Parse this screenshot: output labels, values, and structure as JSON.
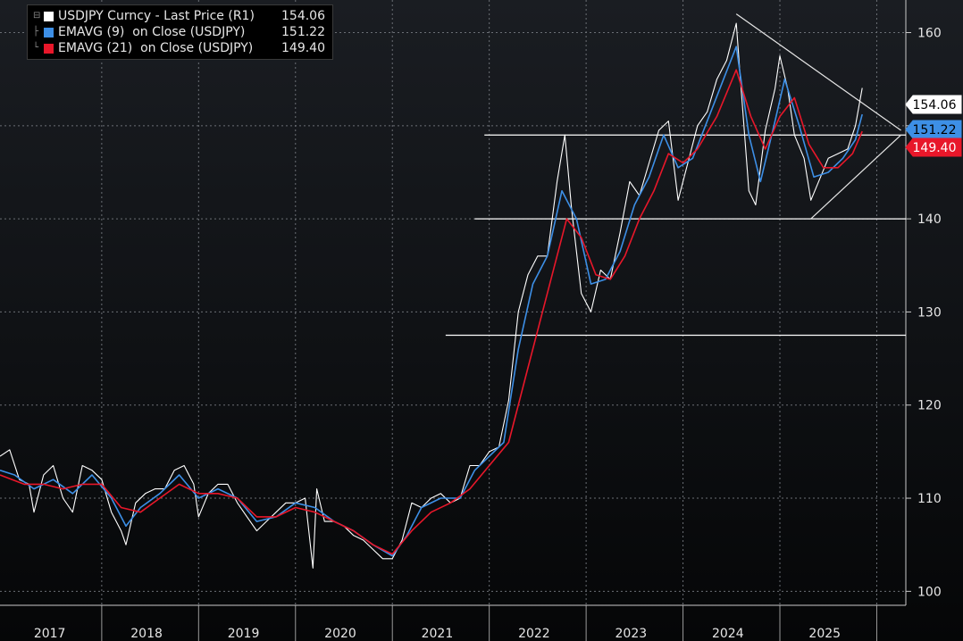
{
  "legend": {
    "items": [
      {
        "label": "USDJPY Curncy - Last Price (R1)",
        "value": "154.06",
        "color": "#ffffff"
      },
      {
        "label": "EMAVG (9)  on Close (USDJPY)",
        "value": "151.22",
        "color": "#3d8fe6"
      },
      {
        "label": "EMAVG (21)  on Close (USDJPY)",
        "value": "149.40",
        "color": "#e8172a"
      }
    ]
  },
  "chart_data": {
    "type": "line",
    "title": "",
    "xlabel": "",
    "ylabel": "",
    "x_axis": {
      "ticks": [
        "2017",
        "2018",
        "2019",
        "2020",
        "2021",
        "2022",
        "2023",
        "2024",
        "2025"
      ]
    },
    "y_axis": {
      "side": "right",
      "ticks": [
        "100",
        "110",
        "120",
        "130",
        "140",
        "150",
        "160"
      ],
      "ylim": [
        98.5,
        163.5
      ]
    },
    "grid": true,
    "legend_placement": "top-left",
    "last_value_tags": [
      {
        "label": "154.06",
        "value": 154.06,
        "color": "#ffffff",
        "text_color": "#000000"
      },
      {
        "label": "151.22",
        "value": 151.22,
        "color": "#3d8fe6",
        "text_color": "#000000"
      },
      {
        "label": "149.40",
        "value": 149.4,
        "color": "#e8172a",
        "text_color": "#ffffff"
      }
    ],
    "series": [
      {
        "name": "USDJPY Curncy - Last Price (R1)",
        "color": "#ffffff",
        "points": [
          [
            2016.95,
            114.5
          ],
          [
            2017.05,
            115.2
          ],
          [
            2017.15,
            112.0
          ],
          [
            2017.25,
            111.5
          ],
          [
            2017.3,
            108.5
          ],
          [
            2017.4,
            112.5
          ],
          [
            2017.5,
            113.5
          ],
          [
            2017.6,
            110.0
          ],
          [
            2017.7,
            108.5
          ],
          [
            2017.8,
            113.5
          ],
          [
            2017.9,
            113.0
          ],
          [
            2018.0,
            112.0
          ],
          [
            2018.1,
            108.5
          ],
          [
            2018.2,
            106.5
          ],
          [
            2018.25,
            105.0
          ],
          [
            2018.35,
            109.5
          ],
          [
            2018.45,
            110.5
          ],
          [
            2018.55,
            111.0
          ],
          [
            2018.65,
            111.0
          ],
          [
            2018.75,
            113.0
          ],
          [
            2018.85,
            113.5
          ],
          [
            2018.95,
            111.5
          ],
          [
            2019.0,
            108.0
          ],
          [
            2019.1,
            110.5
          ],
          [
            2019.2,
            111.5
          ],
          [
            2019.3,
            111.5
          ],
          [
            2019.4,
            109.5
          ],
          [
            2019.5,
            108.0
          ],
          [
            2019.6,
            106.5
          ],
          [
            2019.7,
            107.5
          ],
          [
            2019.8,
            108.5
          ],
          [
            2019.9,
            109.5
          ],
          [
            2020.0,
            109.5
          ],
          [
            2020.1,
            110.0
          ],
          [
            2020.18,
            102.5
          ],
          [
            2020.22,
            111.0
          ],
          [
            2020.3,
            107.5
          ],
          [
            2020.4,
            107.5
          ],
          [
            2020.5,
            107.0
          ],
          [
            2020.6,
            106.0
          ],
          [
            2020.7,
            105.5
          ],
          [
            2020.8,
            104.5
          ],
          [
            2020.9,
            103.5
          ],
          [
            2021.0,
            103.5
          ],
          [
            2021.1,
            105.5
          ],
          [
            2021.2,
            109.5
          ],
          [
            2021.3,
            109.0
          ],
          [
            2021.4,
            110.0
          ],
          [
            2021.5,
            110.5
          ],
          [
            2021.6,
            109.5
          ],
          [
            2021.7,
            110.0
          ],
          [
            2021.8,
            113.5
          ],
          [
            2021.9,
            113.5
          ],
          [
            2022.0,
            115.0
          ],
          [
            2022.1,
            115.5
          ],
          [
            2022.2,
            120.5
          ],
          [
            2022.3,
            130.0
          ],
          [
            2022.4,
            134.0
          ],
          [
            2022.5,
            136.0
          ],
          [
            2022.6,
            136.0
          ],
          [
            2022.7,
            144.0
          ],
          [
            2022.78,
            149.0
          ],
          [
            2022.85,
            141.0
          ],
          [
            2022.95,
            132.0
          ],
          [
            2023.05,
            130.0
          ],
          [
            2023.15,
            134.5
          ],
          [
            2023.25,
            133.5
          ],
          [
            2023.35,
            138.5
          ],
          [
            2023.45,
            144.0
          ],
          [
            2023.55,
            142.5
          ],
          [
            2023.65,
            146.0
          ],
          [
            2023.75,
            149.5
          ],
          [
            2023.85,
            150.5
          ],
          [
            2023.95,
            142.0
          ],
          [
            2024.05,
            146.0
          ],
          [
            2024.15,
            150.0
          ],
          [
            2024.25,
            151.5
          ],
          [
            2024.35,
            155.0
          ],
          [
            2024.45,
            157.0
          ],
          [
            2024.55,
            161.0
          ],
          [
            2024.6,
            154.0
          ],
          [
            2024.68,
            143.0
          ],
          [
            2024.75,
            141.5
          ],
          [
            2024.85,
            149.5
          ],
          [
            2024.95,
            154.0
          ],
          [
            2025.0,
            157.5
          ],
          [
            2025.08,
            154.0
          ],
          [
            2025.15,
            149.0
          ],
          [
            2025.25,
            146.5
          ],
          [
            2025.32,
            142.0
          ],
          [
            2025.4,
            144.0
          ],
          [
            2025.5,
            146.5
          ],
          [
            2025.6,
            147.0
          ],
          [
            2025.7,
            147.5
          ],
          [
            2025.78,
            150.0
          ],
          [
            2025.85,
            154.06
          ]
        ]
      },
      {
        "name": "EMAVG (9)  on Close (USDJPY)",
        "color": "#3d8fe6",
        "points": [
          [
            2016.95,
            113.0
          ],
          [
            2017.1,
            112.5
          ],
          [
            2017.3,
            111.0
          ],
          [
            2017.5,
            112.0
          ],
          [
            2017.7,
            110.5
          ],
          [
            2017.9,
            112.5
          ],
          [
            2018.1,
            110.0
          ],
          [
            2018.25,
            107.0
          ],
          [
            2018.4,
            109.0
          ],
          [
            2018.6,
            110.5
          ],
          [
            2018.8,
            112.5
          ],
          [
            2019.0,
            110.0
          ],
          [
            2019.2,
            111.0
          ],
          [
            2019.4,
            110.0
          ],
          [
            2019.6,
            107.5
          ],
          [
            2019.8,
            108.0
          ],
          [
            2020.0,
            109.5
          ],
          [
            2020.2,
            109.0
          ],
          [
            2020.4,
            107.5
          ],
          [
            2020.6,
            106.5
          ],
          [
            2020.8,
            105.0
          ],
          [
            2021.0,
            103.8
          ],
          [
            2021.15,
            106.0
          ],
          [
            2021.3,
            109.0
          ],
          [
            2021.5,
            110.0
          ],
          [
            2021.7,
            110.0
          ],
          [
            2021.85,
            113.0
          ],
          [
            2022.0,
            114.5
          ],
          [
            2022.15,
            116.0
          ],
          [
            2022.3,
            126.0
          ],
          [
            2022.45,
            133.0
          ],
          [
            2022.6,
            136.0
          ],
          [
            2022.75,
            143.0
          ],
          [
            2022.9,
            140.0
          ],
          [
            2023.05,
            133.0
          ],
          [
            2023.2,
            133.5
          ],
          [
            2023.35,
            136.5
          ],
          [
            2023.5,
            141.5
          ],
          [
            2023.65,
            144.5
          ],
          [
            2023.8,
            149.0
          ],
          [
            2023.95,
            145.5
          ],
          [
            2024.1,
            146.5
          ],
          [
            2024.25,
            150.5
          ],
          [
            2024.4,
            154.5
          ],
          [
            2024.55,
            158.5
          ],
          [
            2024.68,
            149.0
          ],
          [
            2024.8,
            144.0
          ],
          [
            2024.95,
            150.5
          ],
          [
            2025.05,
            155.0
          ],
          [
            2025.2,
            150.0
          ],
          [
            2025.35,
            144.5
          ],
          [
            2025.5,
            145.0
          ],
          [
            2025.65,
            146.5
          ],
          [
            2025.78,
            148.5
          ],
          [
            2025.85,
            151.22
          ]
        ]
      },
      {
        "name": "EMAVG (21)  on Close (USDJPY)",
        "color": "#e8172a",
        "points": [
          [
            2016.95,
            112.5
          ],
          [
            2017.2,
            111.5
          ],
          [
            2017.4,
            111.5
          ],
          [
            2017.6,
            111.0
          ],
          [
            2017.8,
            111.5
          ],
          [
            2018.0,
            111.5
          ],
          [
            2018.2,
            109.0
          ],
          [
            2018.4,
            108.5
          ],
          [
            2018.6,
            110.0
          ],
          [
            2018.8,
            111.5
          ],
          [
            2019.0,
            110.5
          ],
          [
            2019.2,
            110.5
          ],
          [
            2019.4,
            110.0
          ],
          [
            2019.6,
            108.0
          ],
          [
            2019.8,
            108.0
          ],
          [
            2020.0,
            109.0
          ],
          [
            2020.2,
            108.5
          ],
          [
            2020.4,
            107.5
          ],
          [
            2020.6,
            106.5
          ],
          [
            2020.8,
            105.0
          ],
          [
            2021.0,
            104.0
          ],
          [
            2021.2,
            106.5
          ],
          [
            2021.4,
            108.5
          ],
          [
            2021.6,
            109.5
          ],
          [
            2021.8,
            111.0
          ],
          [
            2022.0,
            113.5
          ],
          [
            2022.2,
            116.0
          ],
          [
            2022.4,
            124.0
          ],
          [
            2022.6,
            132.0
          ],
          [
            2022.8,
            140.0
          ],
          [
            2022.95,
            138.0
          ],
          [
            2023.1,
            134.0
          ],
          [
            2023.25,
            133.5
          ],
          [
            2023.4,
            136.0
          ],
          [
            2023.55,
            140.0
          ],
          [
            2023.7,
            143.0
          ],
          [
            2023.85,
            147.0
          ],
          [
            2024.0,
            146.0
          ],
          [
            2024.15,
            147.5
          ],
          [
            2024.35,
            151.0
          ],
          [
            2024.55,
            156.0
          ],
          [
            2024.7,
            151.0
          ],
          [
            2024.85,
            147.5
          ],
          [
            2025.0,
            151.0
          ],
          [
            2025.15,
            153.0
          ],
          [
            2025.3,
            148.0
          ],
          [
            2025.45,
            145.5
          ],
          [
            2025.6,
            145.5
          ],
          [
            2025.75,
            147.0
          ],
          [
            2025.85,
            149.4
          ]
        ]
      }
    ],
    "annotations": [
      {
        "type": "horizontal",
        "y": 149.0,
        "x_start": 2021.95
      },
      {
        "type": "horizontal",
        "y": 140.0,
        "x_start": 2021.85
      },
      {
        "type": "horizontal",
        "y": 127.5,
        "x_start": 2021.55
      },
      {
        "type": "trendline",
        "from": [
          2024.55,
          162.0
        ],
        "to": [
          2026.25,
          149.5
        ]
      },
      {
        "type": "trendline",
        "from": [
          2025.32,
          140.0
        ],
        "to": [
          2026.25,
          149.0
        ]
      }
    ]
  }
}
